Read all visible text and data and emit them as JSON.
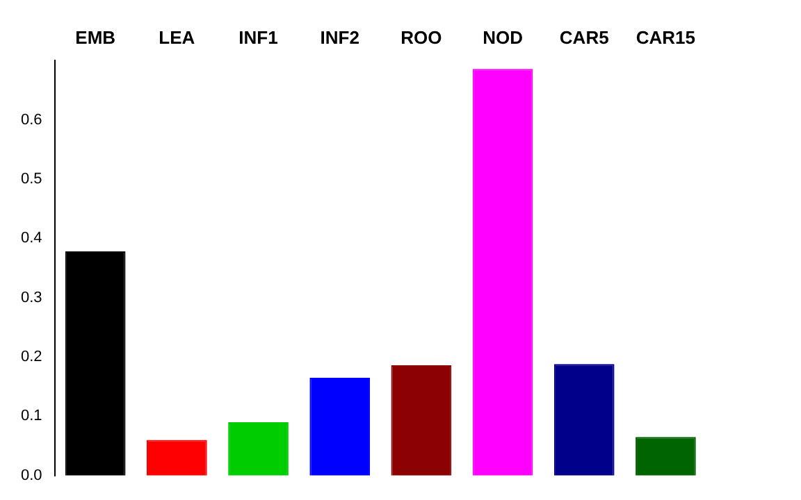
{
  "chart_data": {
    "type": "bar",
    "categories": [
      "EMB",
      "LEA",
      "INF1",
      "INF2",
      "ROO",
      "NOD",
      "CAR5",
      "CAR15"
    ],
    "values": [
      0.378,
      0.06,
      0.09,
      0.165,
      0.186,
      0.686,
      0.188,
      0.065
    ],
    "colors": [
      "#000000",
      "#ff0000",
      "#00cd00",
      "#0000ff",
      "#8b0000",
      "#ff00ff",
      "#00008b",
      "#006400"
    ],
    "ylim": [
      0,
      0.7
    ],
    "yticks": [
      {
        "value": 0,
        "label": "0.0"
      },
      {
        "value": 0.1,
        "label": "0.1"
      },
      {
        "value": 0.2,
        "label": "0.2"
      },
      {
        "value": 0.3,
        "label": "0.3"
      },
      {
        "value": 0.4,
        "label": "0.4"
      },
      {
        "value": 0.5,
        "label": "0.5"
      },
      {
        "value": 0.6,
        "label": "0.6"
      }
    ],
    "grid": false,
    "legend": false
  }
}
